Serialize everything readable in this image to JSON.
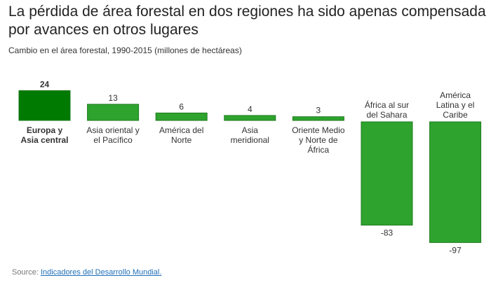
{
  "title": "La pérdida de área forestal en dos regiones ha sido apenas compensada por avances en otros lugares",
  "subtitle": "Cambio en el área forestal, 1990-2015 (millones de hectáreas)",
  "source": {
    "prefix": "Source: ",
    "link_text": "Indicadores del Desarrollo Mundial."
  },
  "colors": {
    "highlight": "#007a00",
    "bar": "#2ea32e",
    "bar_stroke": "#1e7a1e"
  },
  "chart_data": {
    "type": "bar",
    "categories": [
      [
        "Europa y",
        "Asia central"
      ],
      [
        "Asia oriental y",
        "el Pacífico"
      ],
      [
        "América del",
        "Norte"
      ],
      [
        "Asia",
        "meridional"
      ],
      [
        "Oriente Medio",
        "y Norte de",
        "África"
      ],
      [
        "África al sur",
        "del Sahara"
      ],
      [
        "América",
        "Latina y el",
        "Caribe"
      ]
    ],
    "values": [
      24,
      13,
      6,
      4,
      3,
      -83,
      -97
    ],
    "value_labels": [
      "24",
      "13",
      "6",
      "4",
      "3",
      "-83",
      "-97"
    ],
    "highlight_index": 0,
    "ylim": [
      -97,
      24
    ]
  }
}
